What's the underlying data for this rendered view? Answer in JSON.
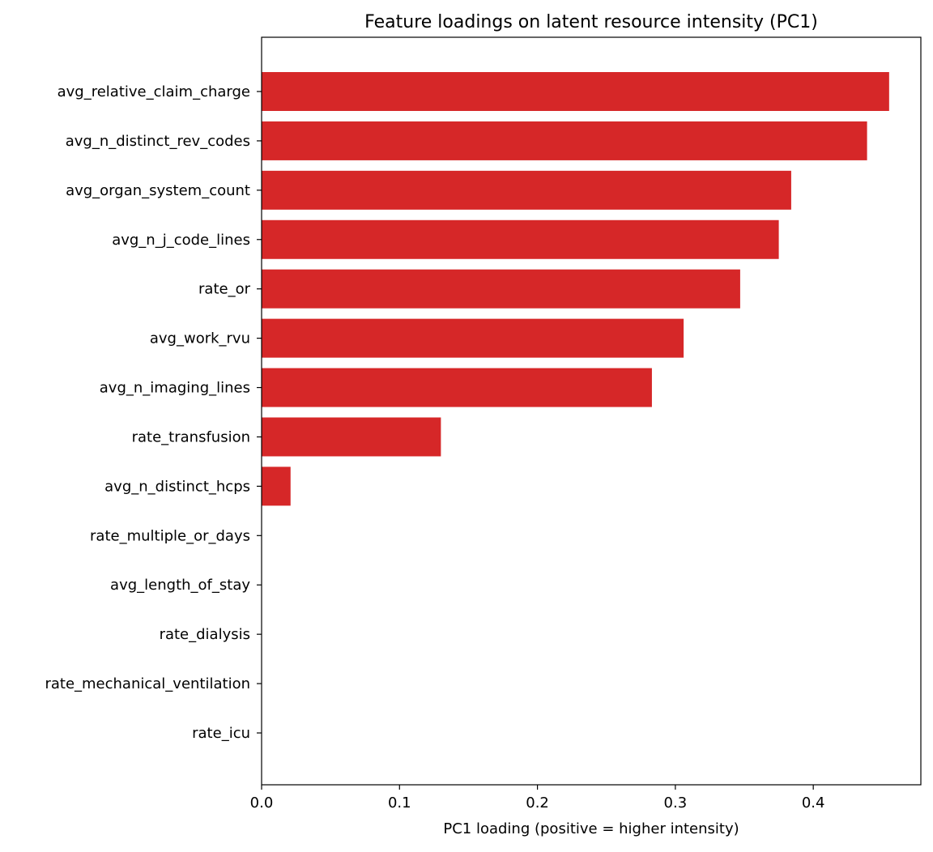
{
  "chart_data": {
    "type": "bar",
    "orientation": "horizontal",
    "title": "Feature loadings on latent resource intensity (PC1)",
    "xlabel": "PC1 loading (positive = higher intensity)",
    "ylabel": "",
    "xlim": [
      0.0,
      0.478
    ],
    "xticks": [
      "0.0",
      "0.1",
      "0.2",
      "0.3",
      "0.4"
    ],
    "xtick_values": [
      0.0,
      0.1,
      0.2,
      0.3,
      0.4
    ],
    "grid": false,
    "bar_color": "#d62728",
    "categories": [
      "avg_relative_claim_charge",
      "avg_n_distinct_rev_codes",
      "avg_organ_system_count",
      "avg_n_j_code_lines",
      "rate_or",
      "avg_work_rvu",
      "avg_n_imaging_lines",
      "rate_transfusion",
      "avg_n_distinct_hcps",
      "rate_multiple_or_days",
      "avg_length_of_stay",
      "rate_dialysis",
      "rate_mechanical_ventilation",
      "rate_icu"
    ],
    "values": [
      0.455,
      0.439,
      0.384,
      0.375,
      0.347,
      0.306,
      0.283,
      0.13,
      0.021,
      0.0,
      0.0,
      0.0,
      0.0,
      0.0
    ]
  }
}
